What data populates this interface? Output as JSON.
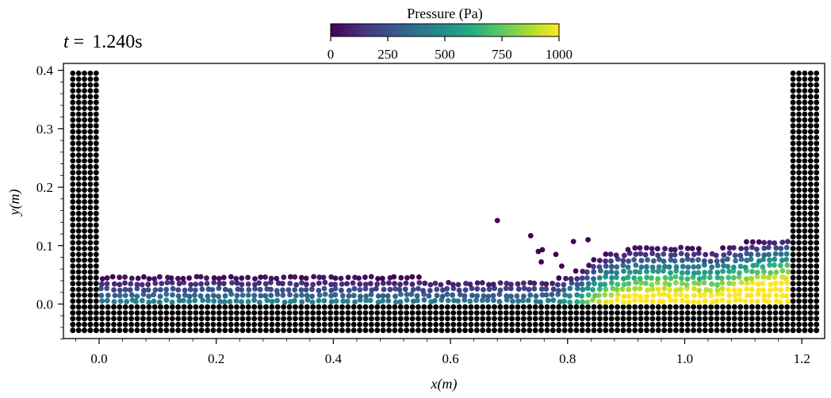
{
  "chart_data": {
    "type": "scatter",
    "time_label": "t = ",
    "time_value": "1.240s",
    "xlabel": "x(m)",
    "ylabel": "y(m)",
    "xlim": [
      -0.05,
      1.23
    ],
    "ylim": [
      -0.06,
      0.41
    ],
    "xticks": [
      0.0,
      0.2,
      0.4,
      0.6,
      0.8,
      1.0,
      1.2
    ],
    "yticks": [
      0.0,
      0.1,
      0.2,
      0.3,
      0.4
    ],
    "xtick_labels": [
      "0.0",
      "0.2",
      "0.4",
      "0.6",
      "0.8",
      "1.0",
      "1.2"
    ],
    "ytick_labels": [
      "0.0",
      "0.1",
      "0.2",
      "0.3",
      "0.4"
    ],
    "colorbar": {
      "label": "Pressure (Pa)",
      "min": 0,
      "max": 1000,
      "ticks": [
        0,
        250,
        500,
        750,
        1000
      ],
      "tick_labels": [
        "0",
        "250",
        "500",
        "750",
        "1000"
      ],
      "colormap": "viridis"
    },
    "boundary_particles": {
      "color": "#000000",
      "spacing": 0.01,
      "left_wall": {
        "x": [
          -0.045,
          -0.005
        ],
        "y": [
          -0.045,
          0.395
        ]
      },
      "right_wall": {
        "x": [
          1.185,
          1.225
        ],
        "y": [
          -0.045,
          0.395
        ]
      },
      "floor": {
        "x": [
          -0.045,
          1.225
        ],
        "y": [
          -0.045,
          -0.005
        ]
      }
    },
    "fluid_particles": {
      "spacing": 0.01,
      "region_x": [
        0.0,
        1.18
      ],
      "surface_height": [
        {
          "x": 0.0,
          "y": 0.047
        },
        {
          "x": 0.2,
          "y": 0.049
        },
        {
          "x": 0.4,
          "y": 0.048
        },
        {
          "x": 0.6,
          "y": 0.044
        },
        {
          "x": 0.78,
          "y": 0.045
        },
        {
          "x": 0.82,
          "y": 0.06
        },
        {
          "x": 0.86,
          "y": 0.085
        },
        {
          "x": 0.9,
          "y": 0.095
        },
        {
          "x": 0.95,
          "y": 0.1
        },
        {
          "x": 1.0,
          "y": 0.098
        },
        {
          "x": 1.05,
          "y": 0.093
        },
        {
          "x": 1.1,
          "y": 0.105
        },
        {
          "x": 1.18,
          "y": 0.115
        }
      ],
      "splash": [
        {
          "x": 0.68,
          "y": 0.143
        },
        {
          "x": 0.737,
          "y": 0.117
        },
        {
          "x": 0.75,
          "y": 0.09
        },
        {
          "x": 0.757,
          "y": 0.093
        },
        {
          "x": 0.755,
          "y": 0.072
        },
        {
          "x": 0.78,
          "y": 0.085
        },
        {
          "x": 0.81,
          "y": 0.107
        },
        {
          "x": 0.835,
          "y": 0.11
        },
        {
          "x": 0.79,
          "y": 0.065
        }
      ]
    }
  }
}
